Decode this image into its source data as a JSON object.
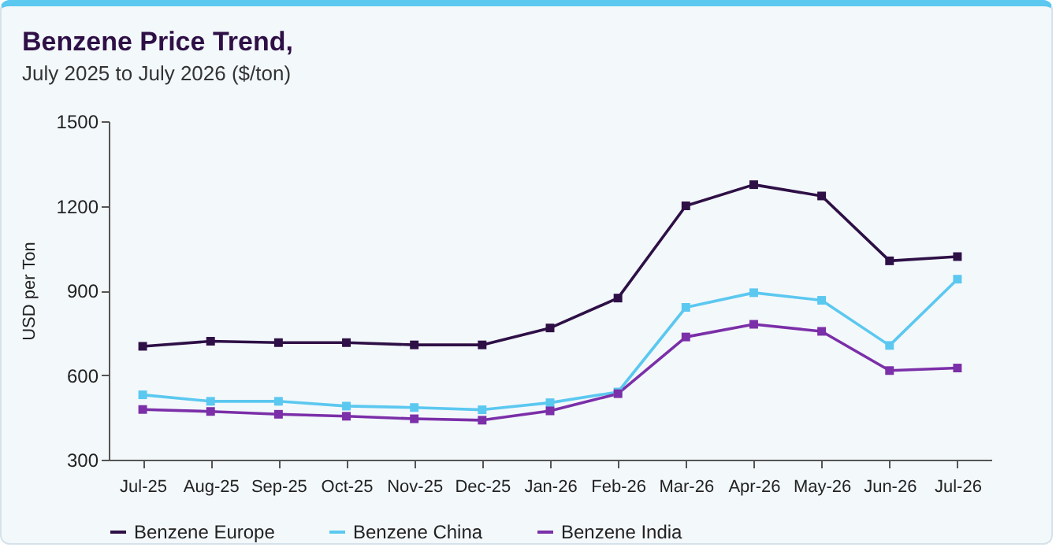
{
  "chart_data": {
    "type": "line",
    "title": "Benzene Price Trend,",
    "subtitle": "July 2025 to July 2026 ($/ton)",
    "ylabel": "USD per Ton",
    "categories": [
      "Jul-25",
      "Aug-25",
      "Sep-25",
      "Oct-25",
      "Nov-25",
      "Dec-25",
      "Jan-26",
      "Feb-26",
      "Mar-26",
      "Apr-26",
      "May-26",
      "Jun-26",
      "Jul-26"
    ],
    "series": [
      {
        "name": "Benzene Europe",
        "color": "#2e1046",
        "values": [
          702,
          720,
          715,
          715,
          707,
          707,
          767,
          873,
          1200,
          1275,
          1235,
          1005,
          1020
        ]
      },
      {
        "name": "Benzene China",
        "color": "#5bc8f0",
        "values": [
          530,
          507,
          507,
          490,
          485,
          477,
          502,
          540,
          840,
          892,
          865,
          705,
          940
        ]
      },
      {
        "name": "Benzene India",
        "color": "#7b2fa8",
        "values": [
          478,
          471,
          461,
          454,
          445,
          440,
          473,
          534,
          735,
          780,
          755,
          616,
          625
        ]
      }
    ],
    "ylim": [
      300,
      1500
    ],
    "yticks": [
      300,
      600,
      900,
      1200,
      1500
    ],
    "grid": false,
    "legend": "bottom",
    "marker": "square",
    "line_style": "solid"
  }
}
